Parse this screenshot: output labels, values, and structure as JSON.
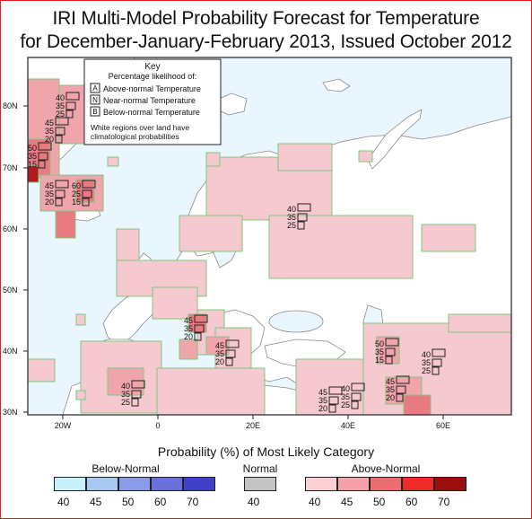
{
  "title": {
    "line1": "IRI Multi-Model Probability Forecast for Temperature",
    "line2": "for December-January-February 2013, Issued October 2012"
  },
  "key": {
    "heading": "Key",
    "subheading": "Percentage likelihood of:",
    "items": [
      {
        "letter": "A",
        "label": "Above-normal Temperature"
      },
      {
        "letter": "N",
        "label": "Near-normal Temperature"
      },
      {
        "letter": "B",
        "label": "Below-normal Temperature"
      }
    ],
    "note_line1": "White regions over land have",
    "note_line2": "climatological probabilities"
  },
  "lat_labels": [
    "80N",
    "70N",
    "60N",
    "50N",
    "40N",
    "30N"
  ],
  "lon_labels": [
    "20W",
    "0",
    "20E",
    "40E",
    "60E"
  ],
  "station_labels": [
    {
      "vals": [
        "40",
        "35",
        "25"
      ]
    },
    {
      "vals": [
        "45",
        "35",
        "20"
      ]
    },
    {
      "vals": [
        "50",
        "35",
        "15"
      ]
    },
    {
      "vals": [
        "45",
        "35",
        "20"
      ]
    },
    {
      "vals": [
        "60",
        "25",
        "15"
      ]
    },
    {
      "vals": [
        "40",
        "35",
        "25"
      ]
    },
    {
      "vals": [
        "45",
        "35",
        "20"
      ]
    },
    {
      "vals": [
        "45",
        "35",
        "20"
      ]
    },
    {
      "vals": [
        "40",
        "35",
        "25"
      ]
    },
    {
      "vals": [
        "50",
        "35",
        "15"
      ]
    },
    {
      "vals": [
        "40",
        "35",
        "25"
      ]
    },
    {
      "vals": [
        "45",
        "35",
        "20"
      ]
    },
    {
      "vals": [
        "40",
        "35",
        "25"
      ]
    },
    {
      "vals": [
        "45",
        "35",
        "20"
      ]
    }
  ],
  "legend": {
    "title": "Probability (%) of Most Likely Category",
    "below": {
      "label": "Below-Normal",
      "ticks": [
        "40",
        "45",
        "50",
        "60",
        "70"
      ],
      "colors": [
        "#c8f0fa",
        "#a8c8f0",
        "#8a9ce8",
        "#6a70da",
        "#4040c8"
      ]
    },
    "normal": {
      "label": "Normal",
      "ticks": [
        "40"
      ],
      "color": "#c4c4c4"
    },
    "above": {
      "label": "Above-Normal",
      "ticks": [
        "40",
        "45",
        "50",
        "60",
        "70"
      ],
      "colors": [
        "#fbd0d4",
        "#f3a2aa",
        "#ec6c72",
        "#ee2a2a",
        "#9a0e0e"
      ]
    }
  },
  "colors": {
    "ocean": "#eaf6fd",
    "land_unforecast": "#ffffff",
    "above_40": "#f6c8cf",
    "above_45": "#f0a4ac",
    "above_50": "#e97a82",
    "above_70": "#b31820",
    "grid_edge": "#7ec87e",
    "border": "#888888"
  }
}
